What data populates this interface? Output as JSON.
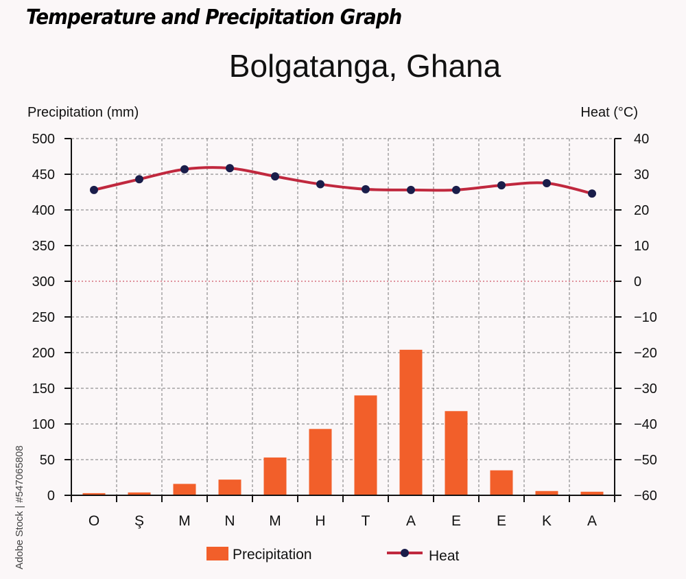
{
  "header": {
    "title": "Temperature and Precipitation Graph"
  },
  "watermark": "Adobe Stock | #547065808",
  "chart_data": {
    "type": "bar+line",
    "title": "Bolgatanga, Ghana",
    "categories": [
      "O",
      "Ş",
      "M",
      "N",
      "M",
      "H",
      "T",
      "A",
      "E",
      "E",
      "K",
      "A"
    ],
    "y_left": {
      "label": "Precipitation (mm)",
      "range": [
        0,
        500
      ],
      "ticks": [
        0,
        50,
        100,
        150,
        200,
        250,
        300,
        350,
        400,
        450,
        500
      ]
    },
    "y_right": {
      "label": "Heat (°C)",
      "range": [
        -60,
        40
      ],
      "ticks": [
        -60,
        -50,
        -40,
        -30,
        -20,
        -10,
        0,
        10,
        20,
        30,
        40
      ],
      "tick_labels": [
        "−60",
        "−50",
        "−40",
        "−30",
        "−20",
        "−10",
        "0",
        "10",
        "20",
        "30",
        "40"
      ]
    },
    "grid": true,
    "legend_position": "bottom",
    "series": [
      {
        "name": "Precipitation",
        "type": "bar",
        "axis": "left",
        "color": "#f25f2a",
        "values": [
          3,
          4,
          16,
          22,
          53,
          93,
          140,
          204,
          118,
          35,
          6,
          5
        ]
      },
      {
        "name": "Heat",
        "type": "line",
        "axis": "right",
        "color": "#c0283e",
        "marker_color": "#1a1d4a",
        "values": [
          25.6,
          28.6,
          31.4,
          31.7,
          29.4,
          27.2,
          25.8,
          25.6,
          25.6,
          26.9,
          27.5,
          24.6
        ]
      }
    ]
  }
}
